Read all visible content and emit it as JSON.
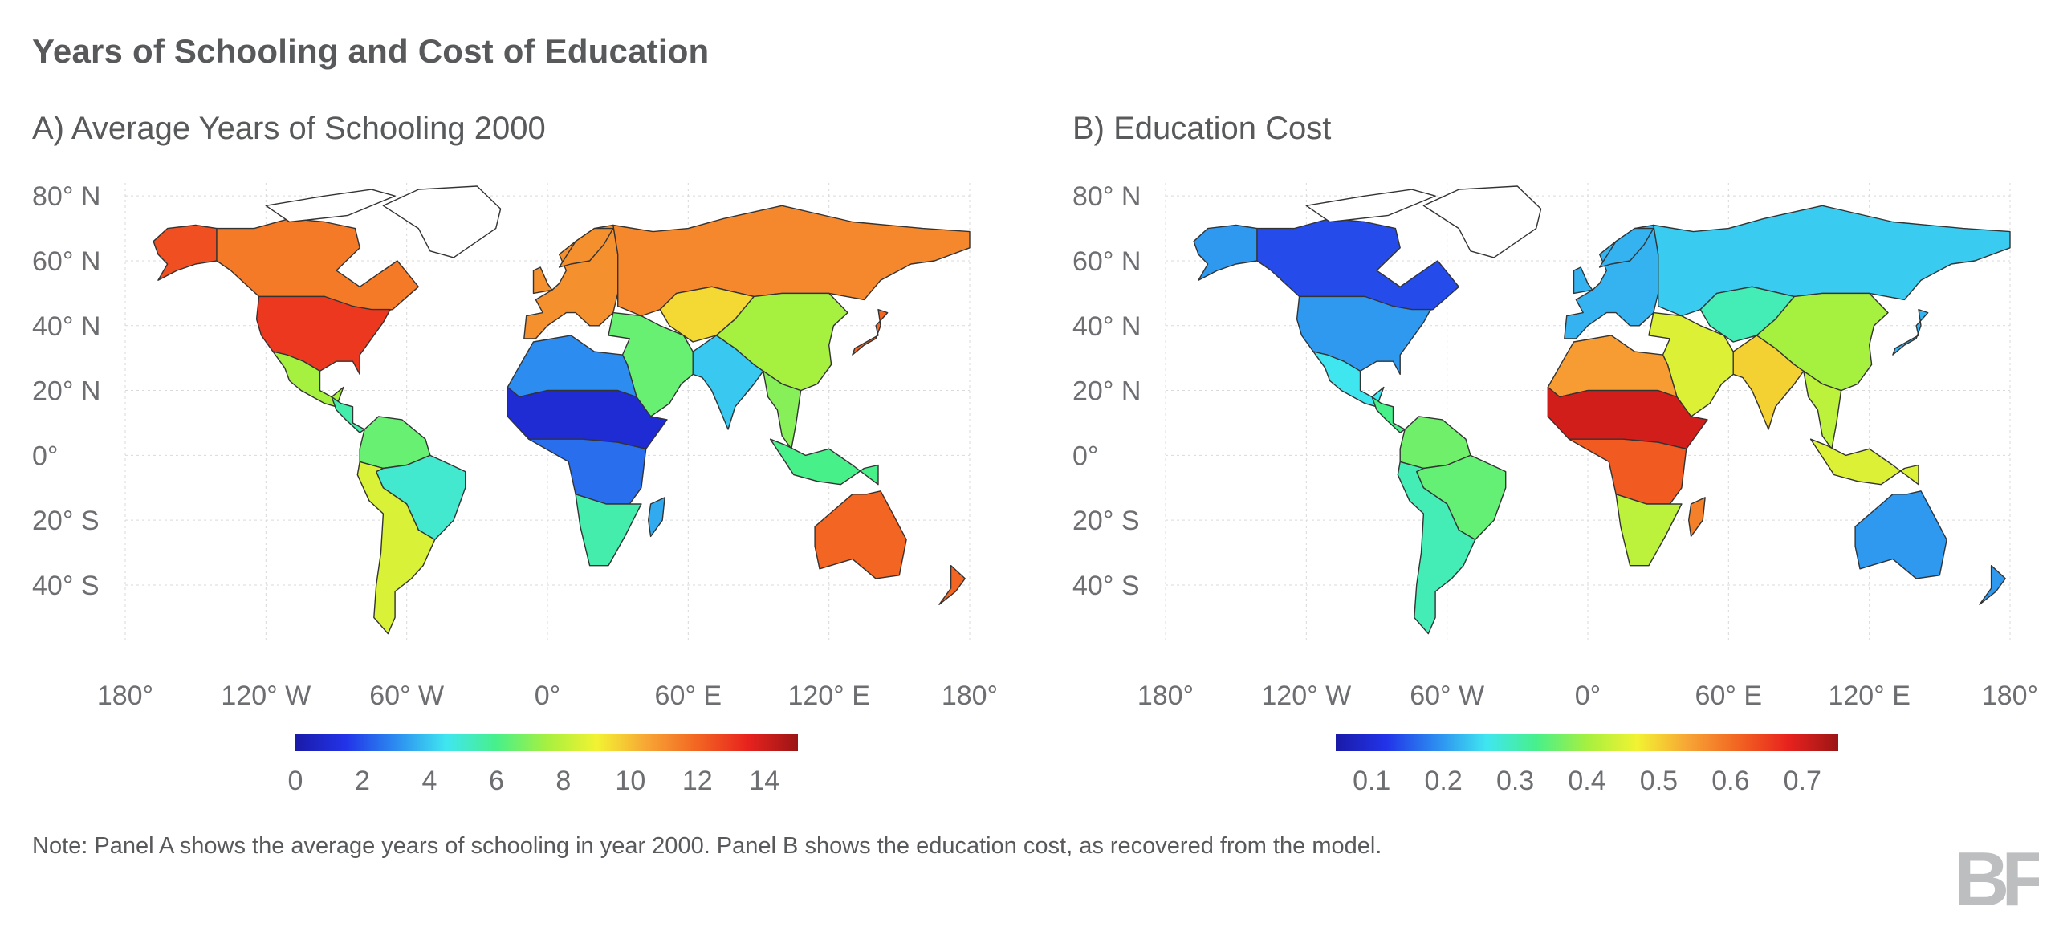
{
  "title": "Years of Schooling and Cost of Education",
  "note": "Note: Panel A shows the average years of schooling in year 2000. Panel B shows the education cost, as recovered from the model.",
  "logo_text": "BF",
  "lat_labels": [
    "80° N",
    "60° N",
    "40° N",
    "20° N",
    "0°",
    "20° S",
    "40° S"
  ],
  "lat_values": [
    80,
    60,
    40,
    20,
    0,
    -20,
    -40
  ],
  "lon_labels": [
    "180°",
    "120° W",
    "60° W",
    "0°",
    "60° E",
    "120° E",
    "180°"
  ],
  "lon_values": [
    -180,
    -120,
    -60,
    0,
    60,
    120,
    180
  ],
  "colors": {
    "text": "#58595b",
    "grid": "#d9d9d9",
    "coast": "#333333"
  },
  "colormap": [
    "#1a1aa8",
    "#2233e8",
    "#2c8cf0",
    "#3fe6f0",
    "#48f08a",
    "#a6f040",
    "#f2f232",
    "#f7a535",
    "#f26522",
    "#e8221e",
    "#9b1515"
  ],
  "panels": [
    {
      "id": "a",
      "title": "A) Average Years of Schooling 2000",
      "colorbar": {
        "min": 0,
        "max": 15,
        "ticks": [
          0,
          2,
          4,
          6,
          8,
          10,
          12,
          14
        ],
        "tick_labels": [
          "0",
          "2",
          "4",
          "6",
          "8",
          "10",
          "12",
          "14"
        ]
      },
      "regions": [
        {
          "name": "Alaska",
          "value": 12.5
        },
        {
          "name": "Canada",
          "value": 11.5
        },
        {
          "name": "United States",
          "value": 13.0
        },
        {
          "name": "Mexico",
          "value": 7.5
        },
        {
          "name": "Central America",
          "value": 5.5
        },
        {
          "name": "Northern South America",
          "value": 6.5
        },
        {
          "name": "Brazil",
          "value": 5.0
        },
        {
          "name": "Southern Cone",
          "value": 8.5
        },
        {
          "name": "Europe",
          "value": 11.0
        },
        {
          "name": "Russia",
          "value": 11.2
        },
        {
          "name": "Middle East",
          "value": 6.5
        },
        {
          "name": "Central Asia",
          "value": 9.5
        },
        {
          "name": "India",
          "value": 4.0
        },
        {
          "name": "China",
          "value": 7.5
        },
        {
          "name": "Southeast Asia",
          "value": 7.0
        },
        {
          "name": "Japan",
          "value": 12.0
        },
        {
          "name": "North Africa",
          "value": 3.0
        },
        {
          "name": "Sahel",
          "value": 1.0
        },
        {
          "name": "Central Africa",
          "value": 2.5
        },
        {
          "name": "Southern Africa",
          "value": 5.5
        },
        {
          "name": "Madagascar",
          "value": 3.5
        },
        {
          "name": "Australia",
          "value": 12.0
        },
        {
          "name": "New Zealand",
          "value": 12.0
        },
        {
          "name": "Indonesia",
          "value": 6.0
        }
      ]
    },
    {
      "id": "b",
      "title": "B) Education Cost",
      "colorbar": {
        "min": 0.05,
        "max": 0.75,
        "ticks": [
          0.1,
          0.2,
          0.3,
          0.4,
          0.5,
          0.6,
          0.7
        ],
        "tick_labels": [
          "0.1",
          "0.2",
          "0.3",
          "0.4",
          "0.5",
          "0.6",
          "0.7"
        ]
      },
      "regions": [
        {
          "name": "Alaska",
          "value": 0.2
        },
        {
          "name": "Canada",
          "value": 0.14
        },
        {
          "name": "United States",
          "value": 0.2
        },
        {
          "name": "Mexico",
          "value": 0.26
        },
        {
          "name": "Central America",
          "value": 0.33
        },
        {
          "name": "Northern South America",
          "value": 0.36
        },
        {
          "name": "Brazil",
          "value": 0.35
        },
        {
          "name": "Southern Cone",
          "value": 0.3
        },
        {
          "name": "Europe",
          "value": 0.22
        },
        {
          "name": "Russia",
          "value": 0.24
        },
        {
          "name": "Middle East",
          "value": 0.45
        },
        {
          "name": "Central Asia",
          "value": 0.3
        },
        {
          "name": "India",
          "value": 0.5
        },
        {
          "name": "China",
          "value": 0.4
        },
        {
          "name": "Southeast Asia",
          "value": 0.42
        },
        {
          "name": "Japan",
          "value": 0.22
        },
        {
          "name": "North Africa",
          "value": 0.55
        },
        {
          "name": "Sahel",
          "value": 0.7
        },
        {
          "name": "Central Africa",
          "value": 0.62
        },
        {
          "name": "Southern Africa",
          "value": 0.42
        },
        {
          "name": "Madagascar",
          "value": 0.58
        },
        {
          "name": "Australia",
          "value": 0.2
        },
        {
          "name": "New Zealand",
          "value": 0.2
        },
        {
          "name": "Indonesia",
          "value": 0.45
        }
      ]
    }
  ]
}
